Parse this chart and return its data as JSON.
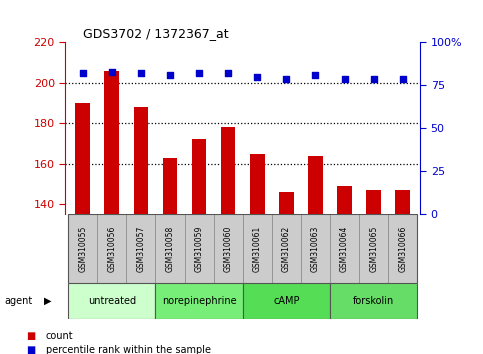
{
  "title": "GDS3702 / 1372367_at",
  "samples": [
    "GSM310055",
    "GSM310056",
    "GSM310057",
    "GSM310058",
    "GSM310059",
    "GSM310060",
    "GSM310061",
    "GSM310062",
    "GSM310063",
    "GSM310064",
    "GSM310065",
    "GSM310066"
  ],
  "counts": [
    190,
    206,
    188,
    163,
    172,
    178,
    165,
    146,
    164,
    149,
    147,
    147
  ],
  "percentiles": [
    82,
    83,
    82,
    81,
    82,
    82,
    80,
    79,
    81,
    79,
    79,
    79
  ],
  "ylim_left": [
    135,
    220
  ],
  "ylim_right": [
    0,
    100
  ],
  "yticks_left": [
    140,
    160,
    180,
    200,
    220
  ],
  "yticks_right": [
    0,
    25,
    50,
    75,
    100
  ],
  "bar_color": "#cc0000",
  "dot_color": "#0000cc",
  "agent_groups": [
    {
      "label": "untreated",
      "start": 0,
      "end": 3,
      "color": "#ccffcc"
    },
    {
      "label": "norepinephrine",
      "start": 3,
      "end": 6,
      "color": "#77ee77"
    },
    {
      "label": "cAMP",
      "start": 6,
      "end": 9,
      "color": "#55dd55"
    },
    {
      "label": "forskolin",
      "start": 9,
      "end": 12,
      "color": "#66dd66"
    }
  ],
  "agent_label": "agent",
  "legend_count_label": "count",
  "legend_pct_label": "percentile rank within the sample",
  "background_color": "#ffffff",
  "plot_bg_color": "#ffffff",
  "sample_box_color": "#cccccc",
  "grid_color": "#000000",
  "dotted_line_at_200": true
}
